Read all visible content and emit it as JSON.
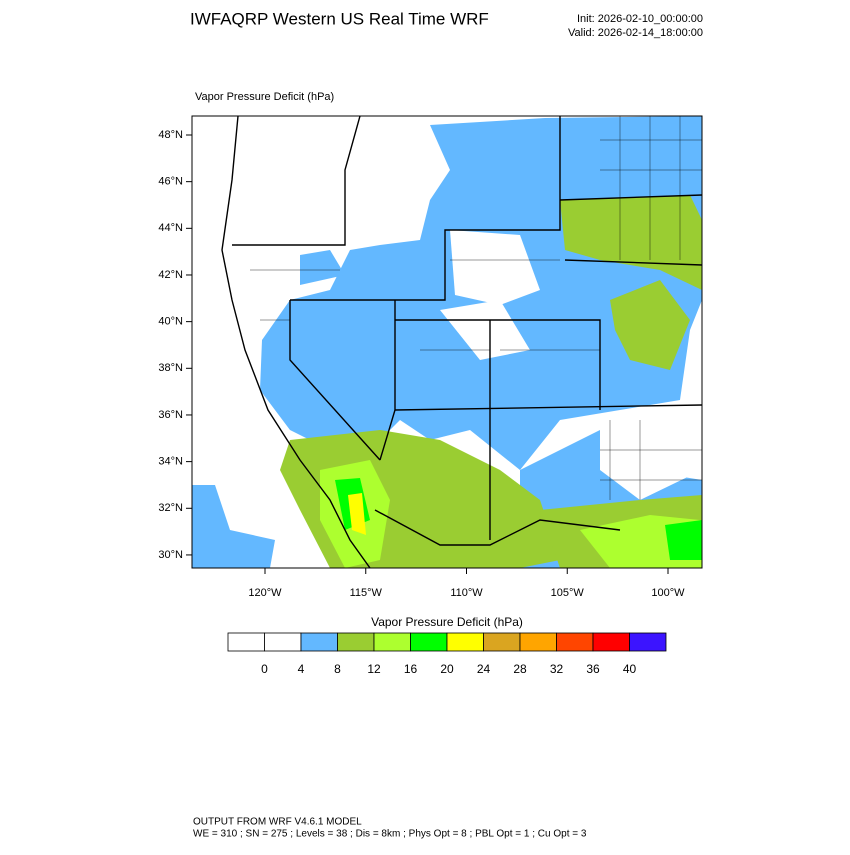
{
  "header": {
    "title": "IWFAQRP Western US Real Time WRF",
    "init": "Init: 2026-02-10_00:00:00",
    "valid": "Valid: 2026-02-14_18:00:00"
  },
  "map": {
    "label": "Vapor Pressure Deficit   (hPa)",
    "lat_ticks": [
      {
        "value": 48,
        "label": "48°N"
      },
      {
        "value": 46,
        "label": "46°N"
      },
      {
        "value": 44,
        "label": "44°N"
      },
      {
        "value": 42,
        "label": "42°N"
      },
      {
        "value": 40,
        "label": "40°N"
      },
      {
        "value": 38,
        "label": "38°N"
      },
      {
        "value": 36,
        "label": "36°N"
      },
      {
        "value": 34,
        "label": "34°N"
      },
      {
        "value": 32,
        "label": "32°N"
      },
      {
        "value": 30,
        "label": "30°N"
      }
    ],
    "lon_ticks": [
      {
        "value": -120,
        "label": "120°W"
      },
      {
        "value": -115,
        "label": "115°W"
      },
      {
        "value": -110,
        "label": "110°W"
      },
      {
        "value": -105,
        "label": "105°W"
      },
      {
        "value": -100,
        "label": "100°W"
      }
    ]
  },
  "colorbar": {
    "title": "Vapor Pressure Deficit  (hPa)",
    "levels": [
      0,
      4,
      8,
      12,
      16,
      20,
      24,
      28,
      32,
      36,
      40
    ],
    "colors": [
      "#ffffff",
      "#ffffff",
      "#63b8ff",
      "#9acd32",
      "#adff2f",
      "#00ff00",
      "#ffff00",
      "#daa520",
      "#ffa500",
      "#ff4500",
      "#ff0000",
      "#3c14ff"
    ]
  },
  "footer": {
    "line1": "OUTPUT FROM WRF V4.6.1 MODEL",
    "line2": "WE = 310 ; SN = 275 ; Levels = 38 ; Dis = 8km ; Phys Opt = 8 ; PBL Opt = 1 ; Cu Opt = 3"
  }
}
